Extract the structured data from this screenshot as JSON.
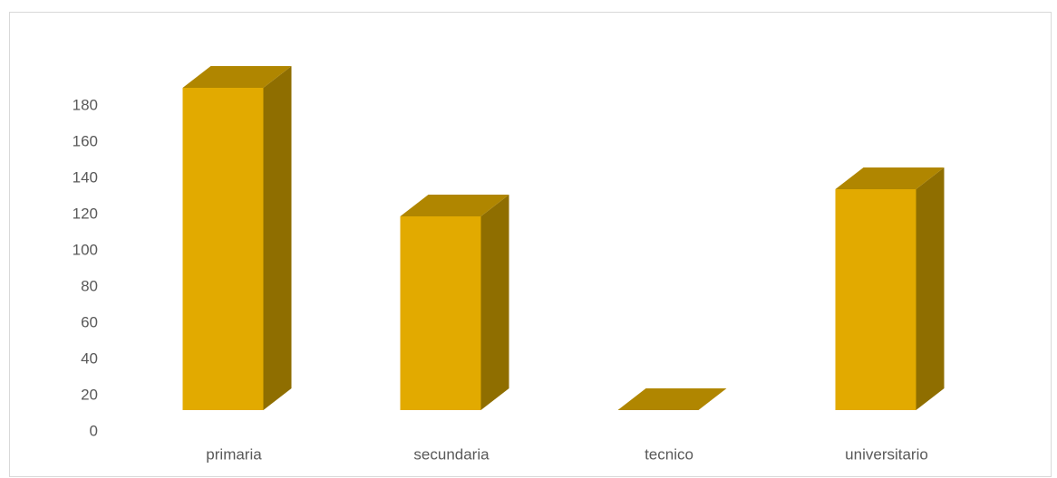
{
  "chart_data": {
    "type": "bar",
    "title": "",
    "xlabel": "",
    "ylabel": "",
    "categories": [
      "primaria",
      "secundaria",
      "tecnico",
      "universitario"
    ],
    "values": [
      178,
      107,
      0,
      122
    ],
    "ylim": [
      0,
      180
    ],
    "yticks": [
      "0",
      "20",
      "40",
      "60",
      "80",
      "100",
      "120",
      "140",
      "160",
      "180"
    ],
    "grid": false,
    "legend": "none",
    "style": "3d-column",
    "colors": {
      "front": "#e2aa00",
      "top": "#b08600",
      "side": "#8f6e00"
    }
  }
}
